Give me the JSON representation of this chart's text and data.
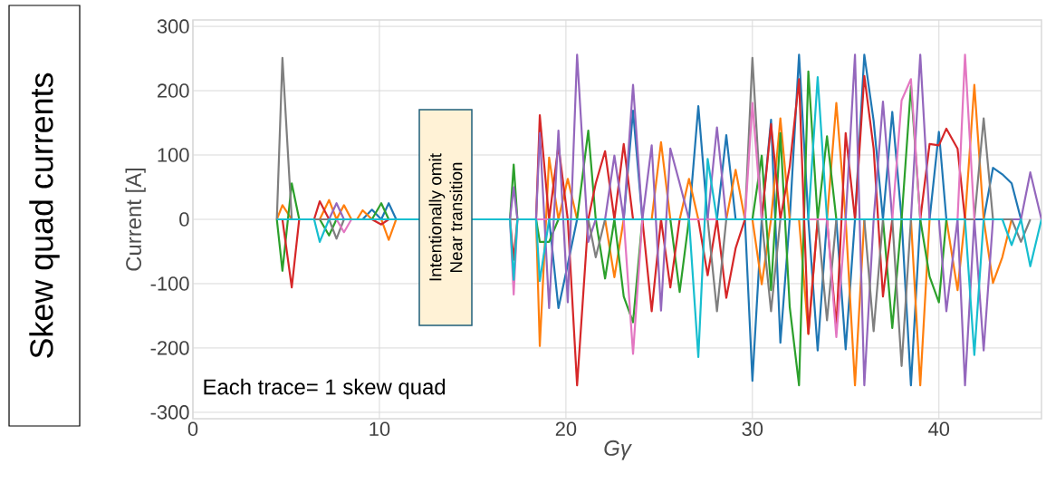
{
  "chart_data": {
    "type": "line",
    "title": "Skew quad currents",
    "xlabel": "Gγ",
    "ylabel": "Current [A]",
    "annotations": [
      "Intentionally omit",
      "Near transition",
      "Each trace= 1 skew quad"
    ],
    "xlim": [
      0,
      45.5
    ],
    "ylim": [
      -310,
      310
    ],
    "xticks": [
      0,
      10,
      20,
      30,
      40
    ],
    "yticks": [
      -300,
      -200,
      -100,
      0,
      100,
      200,
      300
    ],
    "grid": true,
    "x": [
      4.5,
      4.8,
      5.3,
      5.7,
      6.5,
      6.8,
      7.3,
      7.7,
      8.1,
      8.5,
      8.8,
      9.1,
      9.6,
      10.1,
      10.5,
      10.9,
      17.0,
      17.2,
      17.4,
      18.4,
      18.6,
      19.1,
      19.6,
      20.1,
      20.6,
      21.2,
      21.6,
      22.1,
      22.6,
      23.1,
      23.6,
      24.1,
      24.6,
      25.1,
      25.6,
      26.1,
      26.6,
      27.1,
      27.6,
      28.1,
      28.6,
      29.1,
      29.6,
      30.0,
      30.5,
      31.0,
      31.5,
      32.0,
      32.5,
      33.0,
      33.5,
      34.0,
      34.5,
      35.0,
      35.5,
      36.0,
      36.5,
      37.0,
      37.5,
      38.0,
      38.5,
      39.0,
      39.5,
      40.0,
      40.4,
      41.0,
      41.4,
      41.9,
      42.4,
      42.9,
      43.4,
      43.9,
      44.4,
      44.9,
      45.5
    ],
    "series": [
      {
        "color": "#1f77b4",
        "values": [
          null,
          null,
          null,
          null,
          null,
          null,
          null,
          null,
          null,
          null,
          null,
          0,
          15,
          0,
          25,
          0,
          0,
          0,
          0,
          0,
          0,
          0,
          -138,
          -70,
          0,
          0,
          0,
          0,
          0,
          0,
          169,
          0,
          0,
          0,
          0,
          0,
          0,
          176,
          0,
          0,
          131,
          0,
          0,
          -251,
          0,
          155,
          -192,
          0,
          256,
          0,
          -204,
          0,
          0,
          -202,
          0,
          256,
          153,
          0,
          167,
          0,
          -258,
          0,
          0,
          136,
          0,
          0,
          0,
          0,
          0,
          80,
          70,
          56,
          0,
          null,
          null
        ]
      },
      {
        "color": "#ff7f0e",
        "values": [
          0,
          22,
          0,
          0,
          0,
          0,
          30,
          0,
          22,
          0,
          0,
          14,
          0,
          0,
          -32,
          0,
          0,
          0,
          0,
          0,
          -197,
          96,
          0,
          63,
          0,
          0,
          0,
          0,
          -90,
          0,
          0,
          0,
          0,
          120,
          0,
          0,
          63,
          0,
          0,
          0,
          0,
          77,
          0,
          0,
          -101,
          0,
          157,
          0,
          0,
          -178,
          0,
          0,
          181,
          0,
          -258,
          0,
          0,
          0,
          0,
          0,
          0,
          -258,
          0,
          0,
          0,
          -110,
          0,
          209,
          0,
          -99,
          -59,
          0,
          null,
          null,
          null
        ]
      },
      {
        "color": "#2ca02c",
        "values": [
          0,
          -80,
          56,
          0,
          0,
          0,
          -25,
          0,
          0,
          0,
          0,
          0,
          0,
          25,
          0,
          0,
          0,
          85,
          0,
          0,
          -35,
          -35,
          0,
          0,
          0,
          138,
          0,
          -92,
          0,
          -120,
          -160,
          0,
          0,
          0,
          0,
          -113,
          0,
          0,
          0,
          0,
          0,
          0,
          0,
          0,
          99,
          -110,
          134,
          -136,
          -258,
          230,
          0,
          129,
          0,
          0,
          0,
          0,
          0,
          0,
          -169,
          0,
          207,
          0,
          -89,
          -129,
          0,
          null,
          null,
          null,
          null,
          null,
          null,
          null,
          null,
          null,
          null
        ]
      },
      {
        "color": "#d62728",
        "values": [
          null,
          0,
          -106,
          0,
          0,
          28,
          0,
          0,
          0,
          0,
          0,
          0,
          0,
          -8,
          0,
          0,
          0,
          -63,
          0,
          0,
          162,
          0,
          115,
          0,
          -258,
          0,
          56,
          106,
          0,
          117,
          0,
          0,
          -143,
          0,
          -106,
          0,
          0,
          0,
          -87,
          0,
          -122,
          -45,
          0,
          0,
          0,
          148,
          0,
          82,
          218,
          -178,
          0,
          0,
          -167,
          134,
          0,
          223,
          110,
          -120,
          0,
          0,
          0,
          0,
          117,
          115,
          141,
          110,
          0,
          null,
          null,
          null,
          null,
          null,
          null,
          null,
          null
        ]
      },
      {
        "color": "#9467bd",
        "values": [
          null,
          null,
          null,
          null,
          null,
          null,
          0,
          25,
          0,
          0,
          0,
          0,
          0,
          0,
          0,
          0,
          0,
          50,
          0,
          0,
          134,
          -138,
          138,
          -129,
          256,
          -35,
          0,
          0,
          99,
          0,
          209,
          0,
          115,
          -142,
          110,
          56,
          0,
          0,
          0,
          143,
          0,
          0,
          0,
          0,
          0,
          0,
          0,
          0,
          0,
          0,
          0,
          0,
          0,
          0,
          256,
          -258,
          0,
          183,
          0,
          0,
          0,
          256,
          0,
          0,
          -143,
          0,
          -258,
          0,
          -204,
          0,
          0,
          0,
          0,
          73,
          0
        ]
      },
      {
        "color": "#7f7f7f",
        "values": [
          0,
          251,
          0,
          0,
          0,
          0,
          0,
          -30,
          0,
          0,
          0,
          0,
          0,
          0,
          0,
          0,
          0,
          0,
          0,
          0,
          0,
          0,
          0,
          0,
          0,
          0,
          -59,
          0,
          0,
          0,
          0,
          0,
          0,
          0,
          0,
          0,
          0,
          0,
          0,
          -143,
          0,
          0,
          0,
          251,
          0,
          -143,
          0,
          0,
          0,
          0,
          0,
          -157,
          0,
          0,
          0,
          0,
          -174,
          0,
          0,
          -228,
          0,
          0,
          0,
          0,
          0,
          0,
          0,
          0,
          157,
          0,
          0,
          0,
          -35,
          0,
          null
        ]
      },
      {
        "color": "#e377c2",
        "values": [
          null,
          null,
          null,
          null,
          null,
          null,
          null,
          0,
          -20,
          0,
          0,
          0,
          0,
          0,
          0,
          0,
          0,
          -117,
          0,
          0,
          0,
          0,
          0,
          0,
          0,
          0,
          0,
          0,
          0,
          0,
          -209,
          0,
          0,
          0,
          0,
          0,
          0,
          0,
          0,
          0,
          0,
          0,
          0,
          181,
          0,
          0,
          0,
          0,
          0,
          0,
          0,
          0,
          -183,
          0,
          0,
          0,
          0,
          0,
          0,
          185,
          218,
          0,
          0,
          0,
          0,
          0,
          256,
          0,
          null,
          null,
          null,
          null,
          null,
          null,
          null
        ]
      },
      {
        "color": "#17becf",
        "values": [
          0,
          0,
          0,
          0,
          0,
          -35,
          0,
          0,
          0,
          0,
          0,
          0,
          0,
          0,
          0,
          0,
          0,
          -94,
          0,
          0,
          -96,
          0,
          0,
          0,
          0,
          0,
          0,
          0,
          0,
          0,
          0,
          0,
          0,
          0,
          0,
          0,
          0,
          -214,
          94,
          0,
          0,
          0,
          0,
          0,
          0,
          0,
          0,
          0,
          0,
          0,
          221,
          0,
          0,
          0,
          0,
          0,
          0,
          0,
          0,
          0,
          0,
          0,
          0,
          0,
          0,
          0,
          0,
          -211,
          0,
          0,
          0,
          -40,
          0,
          -73,
          0
        ]
      }
    ]
  }
}
